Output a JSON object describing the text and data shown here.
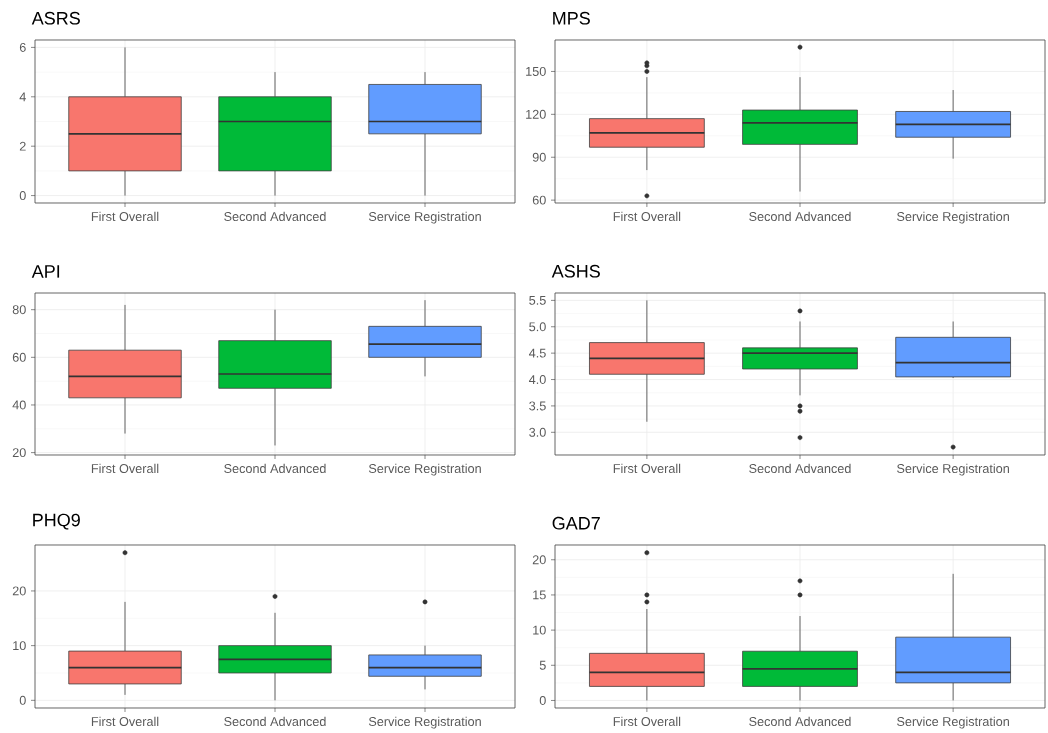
{
  "chart_data": [
    {
      "type": "box",
      "title": "ASRS",
      "categories": [
        "First Overall",
        "Second Advanced",
        "Service Registration"
      ],
      "colors": [
        "#f8766d",
        "#00ba38",
        "#619cff"
      ],
      "ylim": [
        -0.3,
        6.3
      ],
      "yticks": [
        0,
        2,
        4,
        6
      ],
      "grid": true,
      "boxes": [
        {
          "low": 0,
          "q1": 1,
          "median": 2.5,
          "q3": 4,
          "high": 6
        },
        {
          "low": 0,
          "q1": 1,
          "median": 3,
          "q3": 4,
          "high": 5
        },
        {
          "low": 0,
          "q1": 2.5,
          "median": 3,
          "q3": 4.5,
          "high": 5
        }
      ]
    },
    {
      "type": "box",
      "title": "MPS",
      "categories": [
        "First Overall",
        "Second Advanced",
        "Service Registration"
      ],
      "colors": [
        "#f8766d",
        "#00ba38",
        "#619cff"
      ],
      "ylim": [
        58,
        172
      ],
      "yticks": [
        60,
        90,
        120,
        150
      ],
      "grid": true,
      "boxes": [
        {
          "low": 81,
          "q1": 97,
          "median": 107,
          "q3": 117,
          "high": 146,
          "outliers": [
            63,
            150,
            154,
            156
          ]
        },
        {
          "low": 66,
          "q1": 99,
          "median": 114,
          "q3": 123,
          "high": 146,
          "outliers": [
            167
          ]
        },
        {
          "low": 89,
          "q1": 104,
          "median": 113,
          "q3": 122,
          "high": 137
        }
      ]
    },
    {
      "type": "box",
      "title": "API",
      "categories": [
        "First Overall",
        "Second Advanced",
        "Service Registration"
      ],
      "colors": [
        "#f8766d",
        "#00ba38",
        "#619cff"
      ],
      "ylim": [
        19,
        87
      ],
      "yticks": [
        20,
        40,
        60,
        80
      ],
      "grid": true,
      "boxes": [
        {
          "low": 28,
          "q1": 43,
          "median": 52,
          "q3": 63,
          "high": 82
        },
        {
          "low": 23,
          "q1": 47,
          "median": 53,
          "q3": 67,
          "high": 80
        },
        {
          "low": 52,
          "q1": 60,
          "median": 65.5,
          "q3": 73,
          "high": 84
        }
      ]
    },
    {
      "type": "box",
      "title": "ASHS",
      "categories": [
        "First Overall",
        "Second Advanced",
        "Service Registration"
      ],
      "colors": [
        "#f8766d",
        "#00ba38",
        "#619cff"
      ],
      "ylim": [
        2.57,
        5.64
      ],
      "yticks": [
        {
          "value": 3,
          "label": "3.0"
        },
        3.5,
        {
          "value": 4,
          "label": "4.0"
        },
        4.5,
        {
          "value": 5,
          "label": "5.0"
        },
        5.5
      ],
      "grid": true,
      "boxes": [
        {
          "low": 3.2,
          "q1": 4.1,
          "median": 4.4,
          "q3": 4.7,
          "high": 5.5
        },
        {
          "low": 3.7,
          "q1": 4.2,
          "median": 4.5,
          "q3": 4.6,
          "high": 5.1,
          "outliers": [
            5.3,
            3.5,
            3.4,
            2.9
          ]
        },
        {
          "low": 4.03,
          "q1": 4.05,
          "median": 4.32,
          "q3": 4.8,
          "high": 5.1,
          "outliers": [
            2.72
          ]
        }
      ]
    },
    {
      "type": "box",
      "title": "PHQ9",
      "categories": [
        "First Overall",
        "Second Advanced",
        "Service Registration"
      ],
      "colors": [
        "#f8766d",
        "#00ba38",
        "#619cff"
      ],
      "ylim": [
        -1.4,
        28.4
      ],
      "yticks": [
        0,
        10,
        20
      ],
      "grid": true,
      "boxes": [
        {
          "low": 1,
          "q1": 3,
          "median": 6,
          "q3": 9,
          "high": 18,
          "outliers": [
            27
          ]
        },
        {
          "low": 0,
          "q1": 5,
          "median": 7.5,
          "q3": 10,
          "high": 16,
          "outliers": [
            19
          ]
        },
        {
          "low": 2,
          "q1": 4.4,
          "median": 6,
          "q3": 8.3,
          "high": 10,
          "outliers": [
            18
          ]
        }
      ]
    },
    {
      "type": "box",
      "title": "GAD7",
      "categories": [
        "First Overall",
        "Second Advanced",
        "Service Registration"
      ],
      "colors": [
        "#f8766d",
        "#00ba38",
        "#619cff"
      ],
      "ylim": [
        -1.07,
        22.1
      ],
      "yticks": [
        0,
        5,
        10,
        15,
        20
      ],
      "grid": true,
      "boxes": [
        {
          "low": 0,
          "q1": 2,
          "median": 4,
          "q3": 6.7,
          "high": 13,
          "outliers": [
            14,
            15,
            21
          ]
        },
        {
          "low": 0,
          "q1": 2,
          "median": 4.5,
          "q3": 7,
          "high": 12,
          "outliers": [
            15,
            17
          ]
        },
        {
          "low": 0,
          "q1": 2.5,
          "median": 4,
          "q3": 9,
          "high": 18
        }
      ]
    }
  ]
}
